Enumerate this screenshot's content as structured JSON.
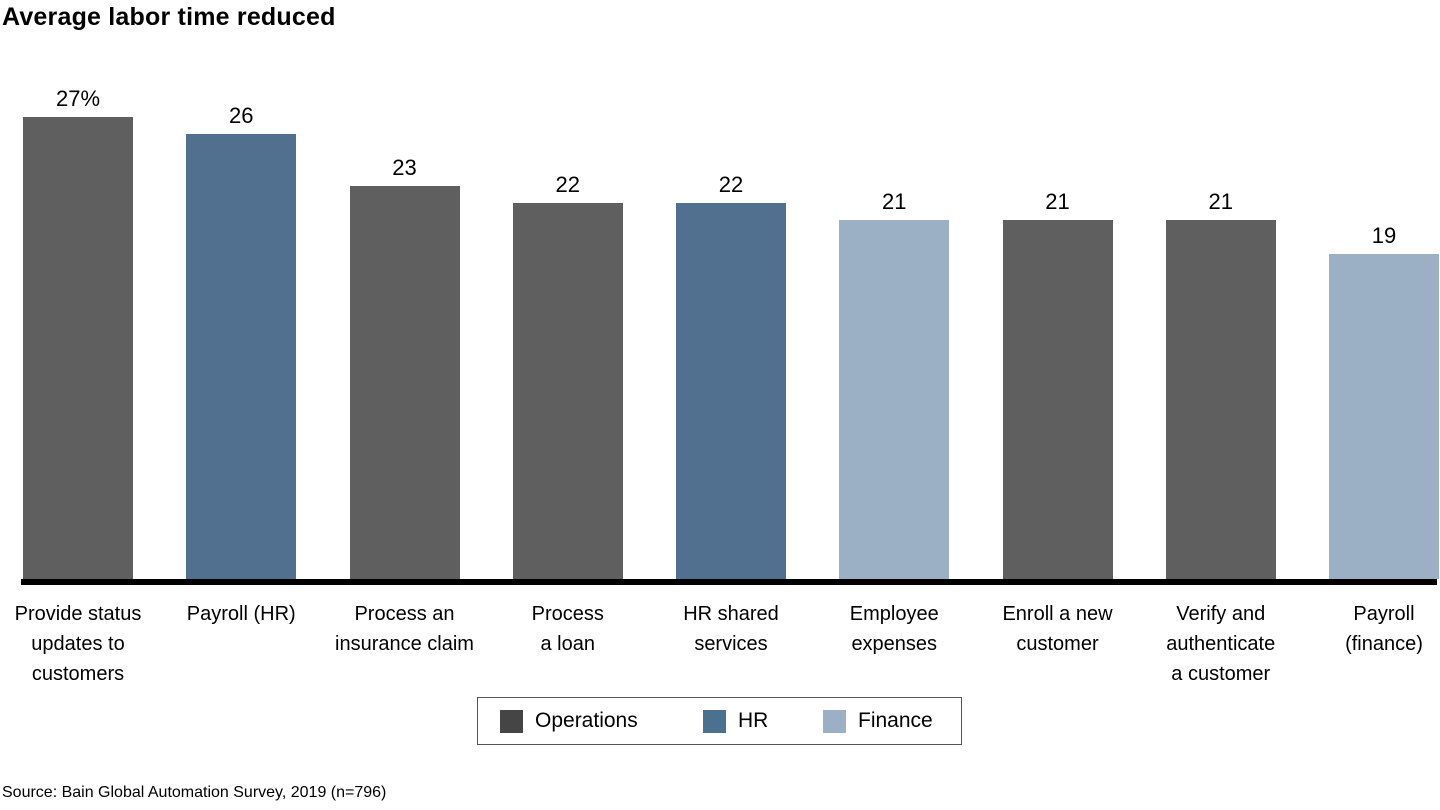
{
  "title": "Average labor time reduced",
  "source": "Source: Bain Global Automation Survey, 2019 (n=796)",
  "legend": {
    "items": [
      {
        "label": "Operations",
        "color": "#454545"
      },
      {
        "label": "HR",
        "color": "#4c7090"
      },
      {
        "label": "Finance",
        "color": "#9bb0c4"
      }
    ]
  },
  "chart_data": {
    "type": "bar",
    "title": "Average labor time reduced",
    "xlabel": "",
    "ylabel": "",
    "unit": "% average labor time reduced",
    "ylim": [
      0,
      28
    ],
    "grid": false,
    "legend_position": "bottom",
    "categories": [
      "Provide status\nupdates to\ncustomers",
      "Payroll (HR)",
      "Process an\ninsurance claim",
      "Process\na loan",
      "HR shared\nservices",
      "Employee\nexpenses",
      "Enroll a new\ncustomer",
      "Verify and\nauthenticate\na customer",
      "Payroll\n(finance)"
    ],
    "values": [
      27,
      26,
      23,
      22,
      22,
      21,
      21,
      21,
      19
    ],
    "value_labels": [
      "27%",
      "26",
      "23",
      "22",
      "22",
      "21",
      "21",
      "21",
      "19"
    ],
    "departments": [
      "Operations",
      "HR",
      "Operations",
      "Operations",
      "HR",
      "Finance",
      "Operations",
      "Operations",
      "Finance"
    ],
    "bar_colors": {
      "Operations": "#5f5f5f",
      "HR": "#517090",
      "Finance": "#9bb0c4"
    }
  }
}
